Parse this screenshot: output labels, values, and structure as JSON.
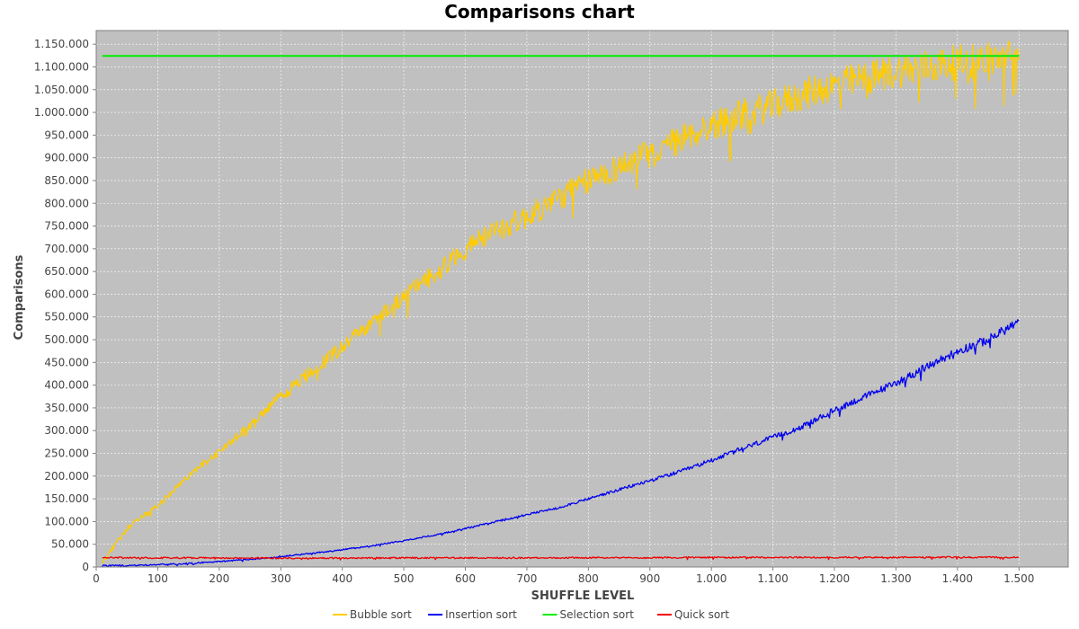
{
  "chart_data": {
    "type": "line",
    "title": "Comparisons chart",
    "xlabel": "SHUFFLE LEVEL",
    "ylabel": "Comparisons",
    "xlim": [
      0,
      1580
    ],
    "ylim": [
      0,
      1180000
    ],
    "x_ticks": [
      0,
      100,
      200,
      300,
      400,
      500,
      600,
      700,
      800,
      900,
      1000,
      1100,
      1200,
      1300,
      1400,
      1500
    ],
    "x_tick_labels": [
      "0",
      "100",
      "200",
      "300",
      "400",
      "500",
      "600",
      "700",
      "800",
      "900",
      "1.000",
      "1.100",
      "1.200",
      "1.300",
      "1.400",
      "1.500"
    ],
    "y_ticks": [
      0,
      50000,
      100000,
      150000,
      200000,
      250000,
      300000,
      350000,
      400000,
      450000,
      500000,
      550000,
      600000,
      650000,
      700000,
      750000,
      800000,
      850000,
      900000,
      950000,
      1000000,
      1050000,
      1100000,
      1150000
    ],
    "y_tick_labels": [
      "0",
      "50.000",
      "100.000",
      "150.000",
      "200.000",
      "250.000",
      "300.000",
      "350.000",
      "400.000",
      "450.000",
      "500.000",
      "550.000",
      "600.000",
      "650.000",
      "700.000",
      "750.000",
      "800.000",
      "850.000",
      "900.000",
      "950.000",
      "1.000.000",
      "1.050.000",
      "1.100.000",
      "1.150.000"
    ],
    "grid": true,
    "legend_position": "bottom",
    "colors": {
      "plot_background": "#c0c0c0",
      "grid": "#ffffff",
      "frame": "#808080"
    },
    "series": [
      {
        "name": "Bubble sort",
        "color": "#ffcc00",
        "x": [
          10,
          50,
          100,
          150,
          200,
          250,
          300,
          350,
          400,
          450,
          500,
          550,
          600,
          650,
          700,
          750,
          800,
          850,
          900,
          950,
          1000,
          1050,
          1100,
          1150,
          1200,
          1250,
          1300,
          1350,
          1400,
          1450,
          1500
        ],
        "y": [
          10000,
          85000,
          135000,
          200000,
          255000,
          310000,
          375000,
          430000,
          485000,
          540000,
          595000,
          645000,
          700000,
          740000,
          770000,
          810000,
          850000,
          880000,
          910000,
          940000,
          970000,
          995000,
          1015000,
          1040000,
          1060000,
          1075000,
          1090000,
          1100000,
          1110000,
          1118000,
          1122000
        ]
      },
      {
        "name": "Insertion sort",
        "color": "#0000ee",
        "x": [
          10,
          50,
          100,
          150,
          200,
          250,
          300,
          350,
          400,
          450,
          500,
          550,
          600,
          650,
          700,
          750,
          800,
          850,
          900,
          950,
          1000,
          1050,
          1100,
          1150,
          1200,
          1250,
          1300,
          1350,
          1400,
          1450,
          1500
        ],
        "y": [
          3000,
          3500,
          5000,
          8000,
          12000,
          17000,
          23000,
          30000,
          38000,
          47000,
          58000,
          70000,
          85000,
          100000,
          115000,
          130000,
          150000,
          170000,
          190000,
          210000,
          235000,
          260000,
          285000,
          310000,
          345000,
          375000,
          405000,
          440000,
          475000,
          500000,
          540000
        ]
      },
      {
        "name": "Selection sort",
        "color": "#00ee00",
        "x": [
          10,
          1500
        ],
        "y": [
          1124000,
          1124000
        ]
      },
      {
        "name": "Quick sort",
        "color": "#ee0000",
        "x": [
          10,
          100,
          200,
          300,
          400,
          500,
          600,
          700,
          800,
          900,
          1000,
          1100,
          1200,
          1300,
          1400,
          1500
        ],
        "y": [
          21000,
          20000,
          20000,
          19500,
          19500,
          20000,
          20000,
          20000,
          20500,
          20500,
          21000,
          21000,
          21000,
          21000,
          21500,
          21500
        ]
      }
    ]
  }
}
